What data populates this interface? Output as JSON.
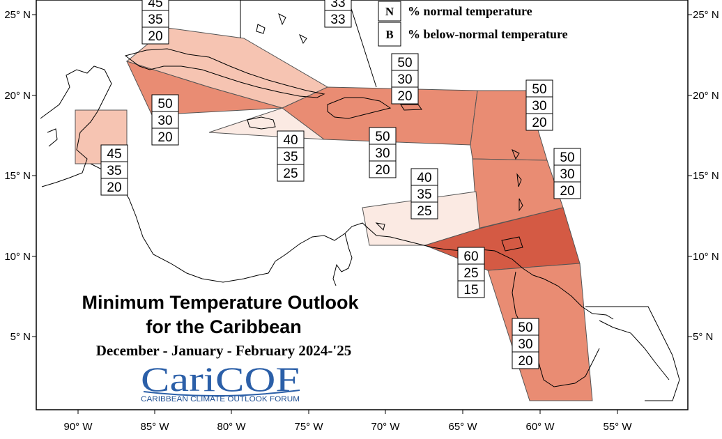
{
  "title_line1": "Minimum Temperature Outlook",
  "title_line2": "for the Caribbean",
  "period": "December - January - February 2024-'25",
  "logo": {
    "name": "CariCOF",
    "caption": "CARIBBEAN CLIMATE OUTLOOK FORUM"
  },
  "legend": [
    {
      "letter": "N",
      "label": "% normal temperature"
    },
    {
      "letter": "B",
      "label": "% below-normal temperature"
    }
  ],
  "axes": {
    "x_ticks": [
      "90° W",
      "85° W",
      "80° W",
      "75° W",
      "70° W",
      "65° W",
      "60° W",
      "55° W"
    ],
    "y_ticks": [
      "25° N",
      "20° N",
      "15° N",
      "10° N",
      "5° N"
    ]
  },
  "colors": {
    "p60": "#d45a44",
    "p50": "#e98c73",
    "p45": "#f6c4b2",
    "p40": "#fbeae3",
    "border": "#000000",
    "logo": "#2b5fa8"
  },
  "regions": [
    {
      "id": "bahamas",
      "values": [
        "45",
        "35",
        "20"
      ],
      "fill": "p45"
    },
    {
      "id": "turks-caicos",
      "values": [
        "33",
        "33"
      ],
      "fill": "p45"
    },
    {
      "id": "cayman",
      "values": [
        "50",
        "30",
        "20"
      ],
      "fill": "p50"
    },
    {
      "id": "belize",
      "values": [
        "45",
        "35",
        "20"
      ],
      "fill": "p45"
    },
    {
      "id": "jamaica",
      "values": [
        "40",
        "35",
        "25"
      ],
      "fill": "p40"
    },
    {
      "id": "hispaniola-north",
      "values": [
        "50",
        "30",
        "20"
      ],
      "fill": "p50"
    },
    {
      "id": "hispaniola-south",
      "values": [
        "50",
        "30",
        "20"
      ],
      "fill": "p50"
    },
    {
      "id": "leeward-islands",
      "values": [
        "50",
        "30",
        "20"
      ],
      "fill": "p50"
    },
    {
      "id": "windward-islands",
      "values": [
        "50",
        "30",
        "20"
      ],
      "fill": "p50"
    },
    {
      "id": "abc-islands",
      "values": [
        "40",
        "35",
        "25"
      ],
      "fill": "p40"
    },
    {
      "id": "trinidad",
      "values": [
        "60",
        "25",
        "15"
      ],
      "fill": "p60"
    },
    {
      "id": "guianas",
      "values": [
        "50",
        "30",
        "20"
      ],
      "fill": "p50"
    }
  ]
}
